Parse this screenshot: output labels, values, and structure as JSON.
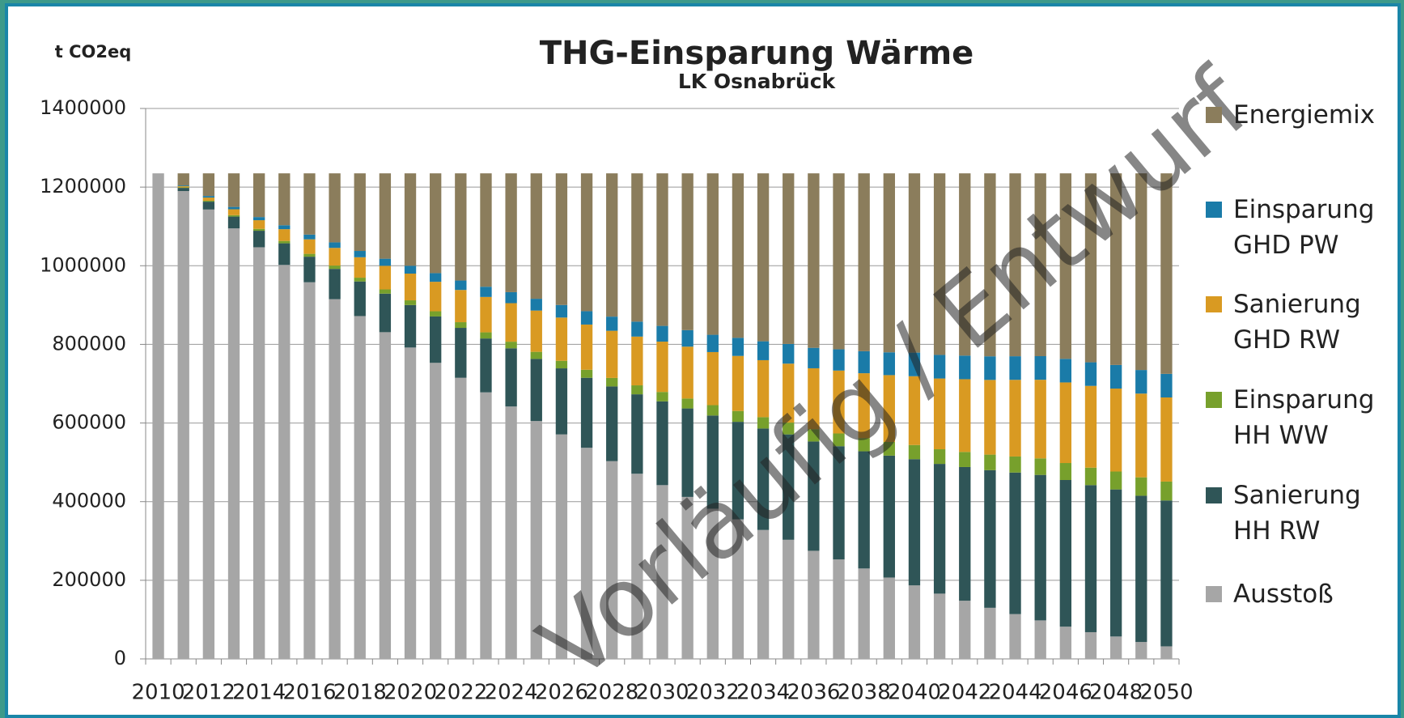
{
  "chart_data": {
    "type": "stacked_bar",
    "title": "THG-Einsparung Wärme",
    "subtitle": "LK Osnabrück",
    "y_axis_label": "t CO2eq",
    "watermark": "Vorläufig / Entwurf",
    "categories": [
      "2010",
      null,
      "2012",
      null,
      "2014",
      null,
      "2016",
      null,
      "2018",
      null,
      "2020",
      null,
      "2022",
      null,
      "2024",
      null,
      "2026",
      null,
      "2028",
      null,
      "2030",
      null,
      "2032",
      null,
      "2034",
      null,
      "2036",
      null,
      "2038",
      null,
      "2040",
      null,
      "2042",
      null,
      "2044",
      null,
      "2046",
      null,
      "2048",
      null,
      "2050"
    ],
    "series": [
      {
        "name": "Ausstoß",
        "color": "#a6a6a6",
        "values": [
          1235000,
          1190000,
          1143000,
          1095000,
          1047000,
          1002000,
          958000,
          915000,
          872000,
          831000,
          792000,
          753000,
          715000,
          678000,
          642000,
          605000,
          571000,
          537000,
          503000,
          471000,
          442000,
          412000,
          382000,
          355000,
          328000,
          303000,
          275000,
          253000,
          230000,
          207000,
          187000,
          166000,
          148000,
          130000,
          114000,
          98000,
          82000,
          68000,
          57000,
          43000,
          32000
        ]
      },
      {
        "name": "Sanierung HH RW",
        "color": "#2f5557",
        "values": [
          0,
          8000,
          20000,
          30000,
          42000,
          55000,
          65000,
          77000,
          88000,
          98000,
          108000,
          118000,
          127000,
          137000,
          148000,
          158000,
          168000,
          178000,
          190000,
          202000,
          213000,
          225000,
          237000,
          248000,
          258000,
          268000,
          278000,
          288000,
          298000,
          310000,
          321000,
          330000,
          340000,
          350000,
          360000,
          370000,
          373000,
          374000,
          374000,
          372000,
          371000
        ]
      },
      {
        "name": "Einsparung HH WW",
        "color": "#77a02c",
        "values": [
          0,
          1200,
          2400,
          3600,
          4800,
          6000,
          7200,
          8400,
          9600,
          10800,
          12000,
          13200,
          14400,
          15600,
          16800,
          18000,
          19200,
          20400,
          21600,
          22800,
          24000,
          25200,
          26400,
          27600,
          28800,
          30000,
          31200,
          32400,
          33600,
          34800,
          36000,
          37200,
          38400,
          39600,
          40800,
          42000,
          43200,
          44400,
          45600,
          46800,
          48000
        ]
      },
      {
        "name": "Sanierung GHD RW",
        "color": "#d99a22",
        "values": [
          0,
          3000,
          8000,
          15000,
          22000,
          30000,
          37000,
          45000,
          52000,
          60000,
          68000,
          75000,
          82000,
          90000,
          98000,
          105000,
          110000,
          115000,
          120000,
          124000,
          128000,
          132000,
          135000,
          140000,
          145000,
          150000,
          155000,
          160000,
          165000,
          170000,
          175000,
          180000,
          185000,
          190000,
          195000,
          200000,
          205000,
          208000,
          211000,
          213000,
          214000
        ]
      },
      {
        "name": "Einsparung GHD PW",
        "color": "#1a7ba8",
        "values": [
          0,
          2000,
          4000,
          6000,
          8000,
          10000,
          12000,
          14000,
          16000,
          18000,
          20000,
          22000,
          24000,
          26000,
          28000,
          30000,
          32000,
          34000,
          36000,
          38000,
          40000,
          42000,
          44000,
          46000,
          48000,
          50000,
          52000,
          54000,
          56000,
          58000,
          60000,
          60000,
          60000,
          60000,
          60000,
          60000,
          60000,
          60000,
          60000,
          60000,
          60000
        ]
      },
      {
        "name": "Energiemix",
        "color": "#8b7d5c",
        "values": [
          0,
          30800,
          57600,
          85400,
          111200,
          132000,
          155800,
          175600,
          197400,
          217200,
          235000,
          253800,
          272600,
          288400,
          302200,
          319000,
          334800,
          350600,
          364400,
          377200,
          388000,
          398800,
          410600,
          418400,
          427200,
          434000,
          443800,
          447600,
          452400,
          455200,
          456000,
          461800,
          463600,
          465400,
          465200,
          465000,
          471800,
          480600,
          487400,
          500200,
          510000
        ]
      }
    ],
    "ylim": [
      0,
      1400000
    ],
    "yticks": [
      0,
      200000,
      400000,
      600000,
      800000,
      1000000,
      1200000,
      1400000
    ],
    "grid": true,
    "legend": "right"
  }
}
